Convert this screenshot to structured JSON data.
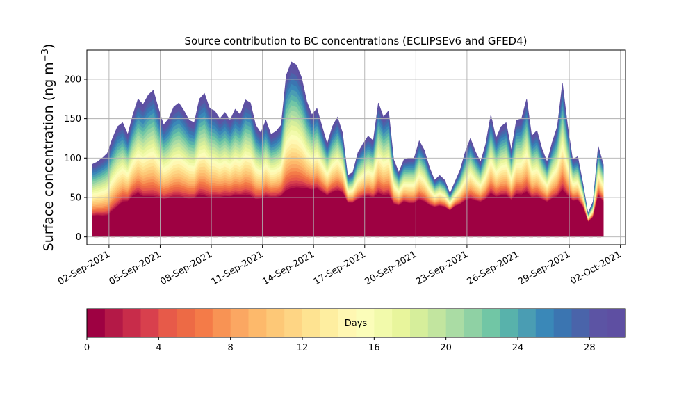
{
  "chart_data": {
    "type": "area",
    "title": "Source contribution to BC concentrations (ECLIPSEv6 and GFED4)",
    "ylabel": "Surface concentration (ng m",
    "ylabel_sup": "−3",
    "ylabel_close": ")",
    "xlabel": "",
    "ylim": [
      -10,
      237
    ],
    "yticks": [
      0,
      50,
      100,
      150,
      200
    ],
    "xticks": [
      {
        "x": 2,
        "label": "02-Sep-2021"
      },
      {
        "x": 5,
        "label": "05-Sep-2021"
      },
      {
        "x": 8,
        "label": "08-Sep-2021"
      },
      {
        "x": 11,
        "label": "11-Sep-2021"
      },
      {
        "x": 14,
        "label": "14-Sep-2021"
      },
      {
        "x": 17,
        "label": "17-Sep-2021"
      },
      {
        "x": 20,
        "label": "20-Sep-2021"
      },
      {
        "x": 23,
        "label": "23-Sep-2021"
      },
      {
        "x": 26,
        "label": "26-Sep-2021"
      },
      {
        "x": 29,
        "label": "29-Sep-2021"
      },
      {
        "x": 32,
        "label": "02-Oct-2021"
      }
    ],
    "x_axis_unit": "day of September 2021",
    "xlim": [
      0.7,
      32.3
    ],
    "grid": true,
    "stack_layers": 30,
    "total": {
      "x": [
        1.0,
        1.3,
        1.6,
        1.9,
        2.2,
        2.5,
        2.8,
        3.1,
        3.4,
        3.7,
        4.0,
        4.3,
        4.6,
        4.9,
        5.2,
        5.5,
        5.8,
        6.1,
        6.4,
        6.7,
        7.0,
        7.3,
        7.6,
        7.9,
        8.2,
        8.5,
        8.8,
        9.1,
        9.4,
        9.7,
        10.0,
        10.3,
        10.6,
        10.9,
        11.2,
        11.5,
        11.8,
        12.1,
        12.4,
        12.7,
        13.0,
        13.3,
        13.6,
        13.9,
        14.2,
        14.5,
        14.8,
        15.1,
        15.4,
        15.7,
        16.0,
        16.3,
        16.6,
        16.9,
        17.2,
        17.5,
        17.8,
        18.1,
        18.4,
        18.7,
        19.0,
        19.3,
        19.6,
        19.9,
        20.2,
        20.5,
        20.8,
        21.1,
        21.4,
        21.7,
        22.0,
        22.3,
        22.6,
        22.9,
        23.2,
        23.5,
        23.8,
        24.1,
        24.4,
        24.7,
        25.0,
        25.3,
        25.6,
        25.9,
        26.2,
        26.5,
        26.8,
        27.1,
        27.4,
        27.7,
        28.0,
        28.3,
        28.6,
        28.9,
        29.2,
        29.5,
        29.8,
        30.1,
        30.4,
        30.7,
        31.0
      ],
      "y": [
        92,
        95,
        100,
        106,
        125,
        140,
        145,
        130,
        155,
        175,
        168,
        180,
        186,
        163,
        142,
        150,
        165,
        170,
        160,
        148,
        145,
        175,
        182,
        163,
        160,
        150,
        158,
        148,
        162,
        155,
        174,
        170,
        142,
        132,
        148,
        130,
        134,
        142,
        205,
        222,
        218,
        202,
        172,
        155,
        163,
        140,
        118,
        140,
        152,
        132,
        78,
        82,
        107,
        118,
        128,
        122,
        170,
        152,
        160,
        98,
        82,
        98,
        100,
        100,
        122,
        110,
        88,
        72,
        78,
        72,
        55,
        70,
        85,
        108,
        125,
        108,
        95,
        118,
        155,
        125,
        140,
        145,
        110,
        148,
        150,
        175,
        128,
        135,
        112,
        95,
        120,
        140,
        195,
        142,
        98,
        102,
        68,
        30,
        45,
        115,
        92
      ],
      "base_fraction": [
        0.28,
        0.28,
        0.26,
        0.25,
        0.26,
        0.27,
        0.3,
        0.34,
        0.33,
        0.31,
        0.3,
        0.28,
        0.27,
        0.3,
        0.33,
        0.32,
        0.3,
        0.29,
        0.3,
        0.32,
        0.33,
        0.3,
        0.28,
        0.3,
        0.31,
        0.33,
        0.32,
        0.34,
        0.32,
        0.33,
        0.3,
        0.3,
        0.33,
        0.36,
        0.34,
        0.38,
        0.37,
        0.36,
        0.28,
        0.27,
        0.28,
        0.3,
        0.35,
        0.38,
        0.37,
        0.4,
        0.44,
        0.4,
        0.38,
        0.42,
        0.55,
        0.52,
        0.44,
        0.42,
        0.4,
        0.4,
        0.32,
        0.34,
        0.33,
        0.42,
        0.48,
        0.45,
        0.42,
        0.42,
        0.38,
        0.4,
        0.45,
        0.52,
        0.5,
        0.52,
        0.6,
        0.55,
        0.48,
        0.42,
        0.38,
        0.42,
        0.46,
        0.4,
        0.35,
        0.4,
        0.37,
        0.36,
        0.42,
        0.36,
        0.35,
        0.32,
        0.38,
        0.37,
        0.42,
        0.46,
        0.4,
        0.36,
        0.3,
        0.36,
        0.46,
        0.45,
        0.55,
        0.62,
        0.55,
        0.45,
        0.48
      ]
    },
    "colorbar": {
      "label": "Days",
      "min": 0,
      "max": 30,
      "ticks": [
        0,
        4,
        8,
        12,
        16,
        20,
        24,
        28
      ],
      "colors": [
        "#9e0142",
        "#b41947",
        "#c82c4a",
        "#d8404d",
        "#e75a49",
        "#ed6a45",
        "#f47b48",
        "#f89354",
        "#fba762",
        "#fdb96b",
        "#fdc877",
        "#fed584",
        "#fee391",
        "#feeea0",
        "#fff7b2",
        "#fbfdb9",
        "#f2faab",
        "#e8f59c",
        "#d6ee9b",
        "#c2e59f",
        "#aadca4",
        "#8fd1a4",
        "#71c6a5",
        "#58b2ab",
        "#4a9db3",
        "#3a88b8",
        "#3b75b1",
        "#4a64aa",
        "#5c54a4",
        "#5e4fa2"
      ]
    }
  }
}
